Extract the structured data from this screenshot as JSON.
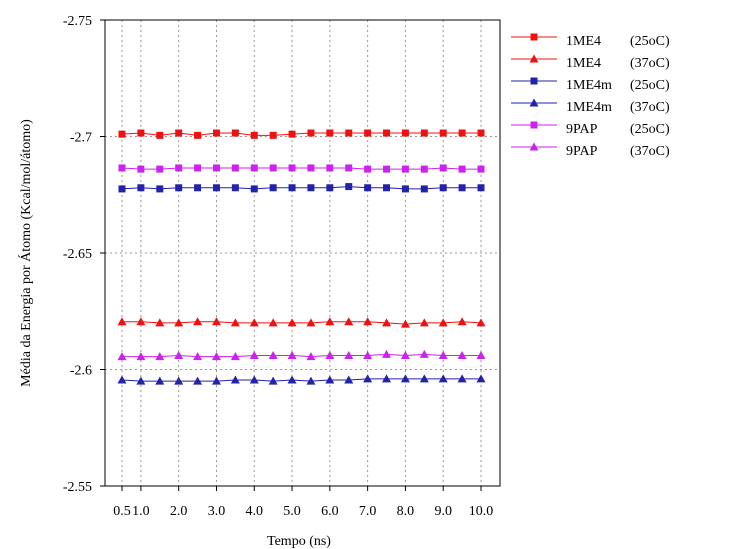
{
  "chart_data": {
    "type": "line",
    "title": "",
    "xlabel": "Tempo (ns)",
    "ylabel": "Média da Energia por Átomo (Kcal/mol/átomo)",
    "y_axis_inverted": true,
    "ylim": [
      -2.75,
      -2.55
    ],
    "yticks": [
      "-2.75",
      "-2.7",
      "-2.65",
      "-2.6",
      "-2.55"
    ],
    "xlim": [
      0,
      10.5
    ],
    "xticks": [
      "0.5",
      "1.0",
      "2.0",
      "3.0",
      "4.0",
      "5.0",
      "6.0",
      "7.0",
      "8.0",
      "9.0",
      "10.0"
    ],
    "xtick_values": [
      0.5,
      1,
      2,
      3,
      4,
      5,
      6,
      7,
      8,
      9,
      10
    ],
    "grid": true,
    "legend_position": "right",
    "x": [
      0.5,
      1.0,
      1.5,
      2.0,
      2.5,
      3.0,
      3.5,
      4.0,
      4.5,
      5.0,
      5.5,
      6.0,
      6.5,
      7.0,
      7.5,
      8.0,
      8.5,
      9.0,
      9.5,
      10.0
    ],
    "series": [
      {
        "name": "1ME4",
        "condition": "(25oC)",
        "color": "#ee1111",
        "marker": "square",
        "values": [
          -2.701,
          -2.7015,
          -2.7005,
          -2.7015,
          -2.7005,
          -2.7015,
          -2.7015,
          -2.7005,
          -2.7005,
          -2.701,
          -2.7015,
          -2.7015,
          -2.7015,
          -2.7015,
          -2.7015,
          -2.7015,
          -2.7015,
          -2.7015,
          -2.7015,
          -2.7015
        ]
      },
      {
        "name": "1ME4",
        "condition": "(37oC)",
        "color": "#ee1111",
        "marker": "triangle",
        "values": [
          -2.6205,
          -2.6205,
          -2.62,
          -2.62,
          -2.6205,
          -2.6205,
          -2.62,
          -2.62,
          -2.62,
          -2.62,
          -2.62,
          -2.6205,
          -2.6205,
          -2.6205,
          -2.62,
          -2.6195,
          -2.62,
          -2.62,
          -2.6205,
          -2.62
        ]
      },
      {
        "name": "1ME4m",
        "condition": "(25oC)",
        "color": "#2222aa",
        "marker": "square",
        "values": [
          -2.6775,
          -2.678,
          -2.6775,
          -2.678,
          -2.678,
          -2.678,
          -2.678,
          -2.6775,
          -2.678,
          -2.678,
          -2.678,
          -2.678,
          -2.6785,
          -2.678,
          -2.678,
          -2.6775,
          -2.6775,
          -2.678,
          -2.678,
          -2.678
        ]
      },
      {
        "name": "1ME4m",
        "condition": "(37oC)",
        "color": "#2222aa",
        "marker": "triangle",
        "values": [
          -2.5955,
          -2.595,
          -2.595,
          -2.595,
          -2.595,
          -2.595,
          -2.5955,
          -2.5955,
          -2.595,
          -2.5955,
          -2.595,
          -2.5955,
          -2.5955,
          -2.596,
          -2.596,
          -2.596,
          -2.596,
          -2.596,
          -2.596,
          -2.596
        ]
      },
      {
        "name": "9PAP",
        "condition": "(25oC)",
        "color": "#cc22ee",
        "marker": "square",
        "values": [
          -2.6865,
          -2.686,
          -2.686,
          -2.6865,
          -2.6865,
          -2.6865,
          -2.6865,
          -2.6865,
          -2.6865,
          -2.6865,
          -2.6865,
          -2.6865,
          -2.6865,
          -2.686,
          -2.686,
          -2.686,
          -2.686,
          -2.6865,
          -2.686,
          -2.686
        ]
      },
      {
        "name": "9PAP",
        "condition": "(37oC)",
        "color": "#cc22ee",
        "marker": "triangle",
        "values": [
          -2.6055,
          -2.6055,
          -2.6055,
          -2.606,
          -2.6055,
          -2.6055,
          -2.6055,
          -2.606,
          -2.606,
          -2.606,
          -2.6055,
          -2.606,
          -2.606,
          -2.606,
          -2.6065,
          -2.606,
          -2.6065,
          -2.606,
          -2.606,
          -2.606
        ]
      }
    ]
  }
}
